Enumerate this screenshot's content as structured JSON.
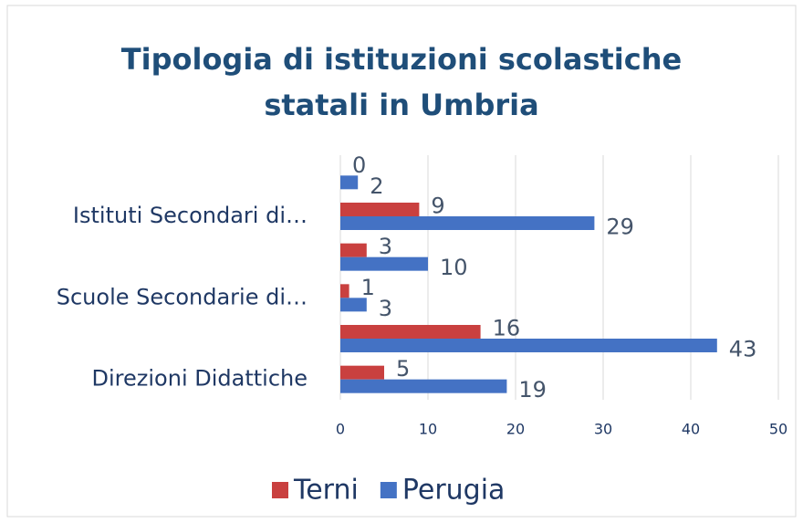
{
  "chart_data": {
    "type": "bar",
    "orientation": "horizontal",
    "title": "Tipologia di istituzioni scolastiche statali in Umbria",
    "categories": [
      "Direzioni Didattiche",
      null,
      "Scuole Secondarie di…",
      null,
      "Istituti Secondari di…",
      null
    ],
    "series": [
      {
        "name": "Terni",
        "color": "#c9403f",
        "values": [
          5,
          16,
          1,
          3,
          9,
          0
        ]
      },
      {
        "name": "Perugia",
        "color": "#4472c4",
        "values": [
          19,
          43,
          3,
          10,
          29,
          2
        ]
      }
    ],
    "xlim": [
      0,
      50
    ],
    "xticks": [
      0,
      10,
      20,
      30,
      40,
      50
    ],
    "grid": true,
    "legend": "bottom"
  }
}
